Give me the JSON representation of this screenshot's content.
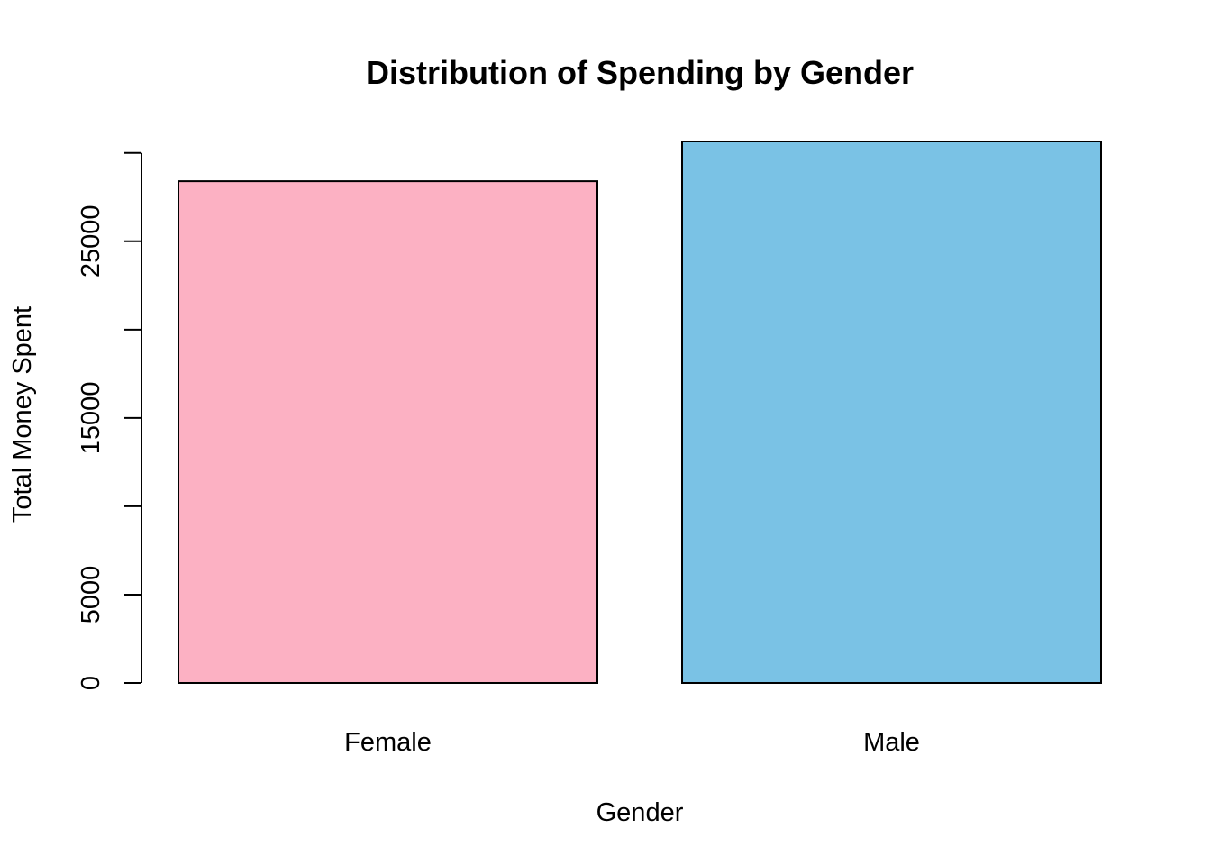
{
  "chart_data": {
    "type": "bar",
    "title": "Distribution of Spending by Gender",
    "xlabel": "Gender",
    "ylabel": "Total Money Spent",
    "categories": [
      "Female",
      "Male"
    ],
    "values": [
      28400,
      30650
    ],
    "colors": [
      "#FCB1C3",
      "#7AC2E5"
    ],
    "ylim": [
      0,
      30650
    ],
    "yticks": [
      0,
      5000,
      10000,
      15000,
      20000,
      25000,
      30000
    ],
    "ytick_labels": [
      "0",
      "5000",
      "",
      "15000",
      "",
      "25000",
      ""
    ],
    "grid": false,
    "legend": "none"
  }
}
